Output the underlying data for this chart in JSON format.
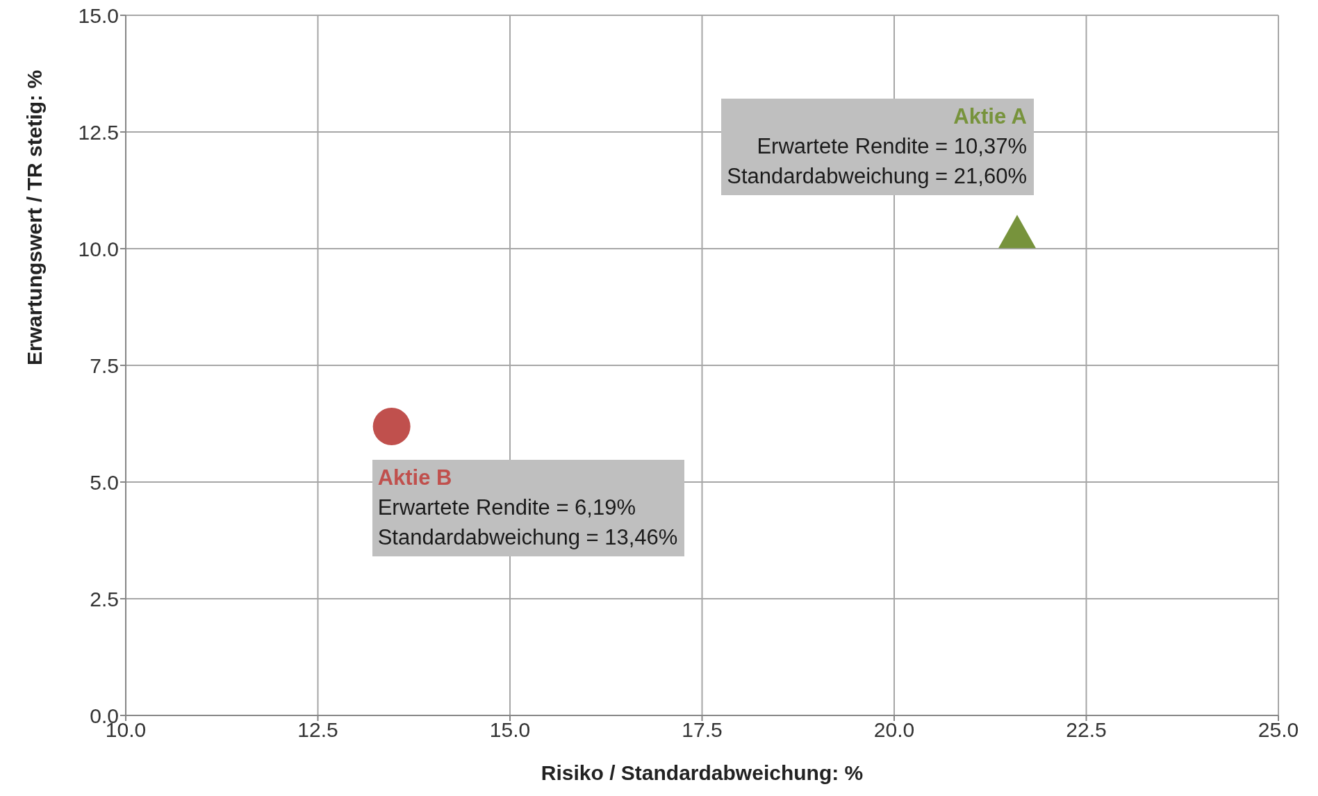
{
  "chart_data": {
    "type": "scatter",
    "xlabel": "Risiko / Standardabweichung: %",
    "ylabel": "Erwartungswert / TR stetig: %",
    "xlim": [
      10,
      25
    ],
    "xticks": [
      {
        "value": 10,
        "label": "10.0"
      },
      {
        "value": 12.5,
        "label": "12.5"
      },
      {
        "value": 15,
        "label": "15.0"
      },
      {
        "value": 17.5,
        "label": "17.5"
      },
      {
        "value": 20,
        "label": "20.0"
      },
      {
        "value": 22.5,
        "label": "22.5"
      },
      {
        "value": 25,
        "label": "25.0"
      }
    ],
    "ylim": [
      0,
      15
    ],
    "yticks": [
      {
        "value": 0,
        "label": "0.0"
      },
      {
        "value": 2.5,
        "label": "2.5"
      },
      {
        "value": 5,
        "label": "5.0"
      },
      {
        "value": 7.5,
        "label": "7.5"
      },
      {
        "value": 10,
        "label": "10.0"
      },
      {
        "value": 12.5,
        "label": "12.5"
      },
      {
        "value": 15,
        "label": "15.0"
      }
    ],
    "grid": true,
    "legend": false,
    "series": [
      {
        "name": "Aktie A",
        "color": "#77933c",
        "marker": "triangle",
        "x": [
          21.6
        ],
        "values": [
          10.37
        ]
      },
      {
        "name": "Aktie B",
        "color": "#c0504d",
        "marker": "circle",
        "x": [
          13.46
        ],
        "values": [
          6.19
        ]
      }
    ],
    "annotations": [
      "Erwartete Rendite = 10,37%",
      "Standardabweichung = 21,60%",
      "Erwartete Rendite = 6,19%",
      "Standardabweichung = 13,46%"
    ]
  }
}
